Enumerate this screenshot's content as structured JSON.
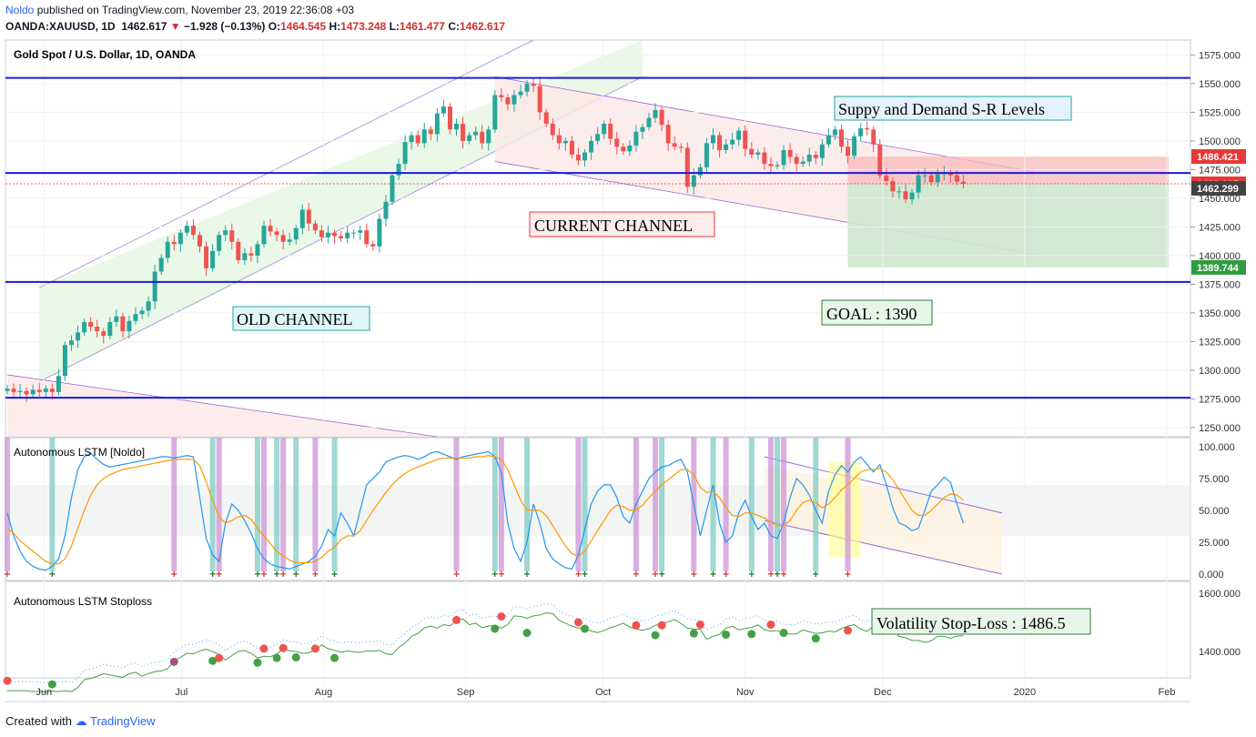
{
  "header": {
    "author": "Noldo",
    "published": "published on TradingView.com, November 23, 2019 22:36:08 +03",
    "symbol": "OANDA:XAUUSD, 1D",
    "last": "1462.617",
    "change": "−1.928 (−0.13%)",
    "o_label": "O:",
    "o_value": "1464.545",
    "h_label": "H:",
    "h_value": "1473.248",
    "l_label": "L:",
    "l_value": "1461.477",
    "c_label": "C:",
    "c_value": "1462.617"
  },
  "footer": {
    "created_with": "Created with",
    "brand": "TradingView"
  },
  "colors": {
    "up": "#26a69a",
    "down": "#ef5350",
    "level": "#1a1adf",
    "lstm": "#2196f3",
    "signal": "#ff9800",
    "channel": "#9c6bd1"
  },
  "chart_data": [
    {
      "type": "candlestick",
      "title": "Gold Spot / U.S. Dollar, 1D, OANDA",
      "ylim": [
        1242,
        1588
      ],
      "y_ticks": [
        "1575.000",
        "1550.000",
        "1525.000",
        "1500.000",
        "1475.000",
        "1450.000",
        "1425.000",
        "1400.000",
        "1375.000",
        "1350.000",
        "1325.000",
        "1300.000",
        "1275.000",
        "1250.000"
      ],
      "x_ticks": [
        "Jun",
        "Jul",
        "Aug",
        "Sep",
        "Oct",
        "Nov",
        "Dec",
        "2020",
        "Feb"
      ],
      "start_date": "2019-05-24",
      "closes": [
        1284,
        1281,
        1282,
        1279,
        1283,
        1281,
        1284,
        1281,
        1295,
        1322,
        1326,
        1333,
        1342,
        1338,
        1334,
        1330,
        1342,
        1347,
        1334,
        1343,
        1349,
        1352,
        1360,
        1386,
        1398,
        1412,
        1410,
        1420,
        1426,
        1418,
        1408,
        1389,
        1404,
        1418,
        1422,
        1412,
        1396,
        1402,
        1400,
        1410,
        1426,
        1421,
        1418,
        1412,
        1414,
        1424,
        1440,
        1428,
        1422,
        1416,
        1420,
        1417,
        1415,
        1420,
        1420,
        1422,
        1410,
        1408,
        1432,
        1447,
        1470,
        1480,
        1499,
        1505,
        1498,
        1510,
        1506,
        1524,
        1530,
        1510,
        1515,
        1500,
        1505,
        1508,
        1498,
        1510,
        1540,
        1538,
        1532,
        1540,
        1543,
        1550,
        1548,
        1525,
        1515,
        1505,
        1498,
        1500,
        1488,
        1483,
        1490,
        1500,
        1506,
        1515,
        1502,
        1495,
        1491,
        1496,
        1508,
        1512,
        1520,
        1527,
        1514,
        1498,
        1495,
        1494,
        1460,
        1470,
        1477,
        1498,
        1505,
        1492,
        1497,
        1501,
        1509,
        1493,
        1488,
        1490,
        1480,
        1478,
        1479,
        1492,
        1486,
        1480,
        1482,
        1488,
        1485,
        1497,
        1505,
        1510,
        1495,
        1487,
        1504,
        1511,
        1510,
        1497,
        1470,
        1465,
        1456,
        1456,
        1449,
        1455,
        1470,
        1470,
        1464,
        1471,
        1472,
        1470,
        1464.5,
        1462.6
      ],
      "levels": [
        1555,
        1472,
        1377,
        1276
      ],
      "current_price": "1462.617",
      "stop_price": "1486.421",
      "low_price": "1462.299",
      "target_price": "1389.744",
      "annotations": [
        "Suppy and Demand S-R Levels",
        "CURRENT CHANNEL",
        "OLD CHANNEL",
        "GOAL : 1390"
      ]
    },
    {
      "type": "line",
      "title": "Autonomous LSTM [Noldo]",
      "ylim": [
        -5,
        107
      ],
      "y_ticks": [
        "100.000",
        "75.000",
        "50.000",
        "25.000",
        "0.000"
      ],
      "series": [
        {
          "name": "LSTM",
          "values": [
            48,
            30,
            18,
            10,
            6,
            4,
            3,
            6,
            12,
            30,
            60,
            82,
            92,
            95,
            90,
            86,
            84,
            85,
            86,
            87,
            88,
            89,
            90,
            91,
            92,
            92,
            91,
            92,
            93,
            92,
            60,
            28,
            15,
            10,
            40,
            55,
            50,
            42,
            32,
            20,
            12,
            8,
            6,
            5,
            4,
            6,
            8,
            10,
            14,
            22,
            35,
            30,
            48,
            40,
            30,
            50,
            70,
            75,
            80,
            88,
            90,
            92,
            93,
            92,
            90,
            92,
            95,
            96,
            94,
            92,
            90,
            92,
            93,
            94,
            95,
            96,
            92,
            80,
            40,
            20,
            10,
            25,
            55,
            40,
            20,
            12,
            8,
            5,
            4,
            15,
            35,
            55,
            65,
            70,
            70,
            60,
            45,
            40,
            55,
            65,
            75,
            80,
            84,
            85,
            88,
            90,
            80,
            55,
            30,
            50,
            70,
            40,
            25,
            30,
            48,
            58,
            45,
            35,
            40,
            30,
            28,
            40,
            60,
            75,
            70,
            62,
            50,
            40,
            65,
            78,
            85,
            80,
            88,
            92,
            86,
            80,
            86,
            70,
            52,
            40,
            38,
            34,
            36,
            50,
            65,
            70,
            76,
            72,
            55,
            40
          ]
        },
        {
          "name": "Signal",
          "values": [
            36,
            32,
            26,
            22,
            18,
            14,
            10,
            8,
            8,
            12,
            22,
            36,
            50,
            62,
            70,
            75,
            78,
            80,
            82,
            83,
            84,
            85,
            86,
            87,
            88,
            89,
            90,
            90,
            90,
            90,
            85,
            72,
            58,
            45,
            40,
            42,
            45,
            46,
            43,
            36,
            30,
            24,
            18,
            14,
            11,
            9,
            9,
            9,
            10,
            13,
            18,
            21,
            27,
            30,
            30,
            34,
            42,
            50,
            57,
            64,
            70,
            75,
            79,
            82,
            84,
            86,
            88,
            90,
            91,
            91,
            91,
            91,
            91,
            92,
            92,
            93,
            92,
            90,
            82,
            70,
            58,
            50,
            50,
            50,
            46,
            38,
            30,
            22,
            16,
            14,
            18,
            26,
            34,
            42,
            50,
            54,
            53,
            50,
            50,
            54,
            60,
            65,
            70,
            74,
            78,
            82,
            82,
            78,
            68,
            64,
            65,
            60,
            52,
            46,
            45,
            48,
            48,
            46,
            44,
            41,
            38,
            38,
            42,
            50,
            56,
            58,
            56,
            52,
            55,
            60,
            66,
            70,
            75,
            80,
            82,
            82,
            83,
            80,
            74,
            66,
            58,
            50,
            46,
            46,
            50,
            55,
            60,
            63,
            62,
            58
          ]
        }
      ],
      "signals": "+"
    },
    {
      "type": "line",
      "title": "Autonomous LSTM Stoploss",
      "y_ticks": [
        "1600.000",
        "1400.000"
      ],
      "annotation": "Volatility Stop-Loss : 1486.5"
    }
  ]
}
